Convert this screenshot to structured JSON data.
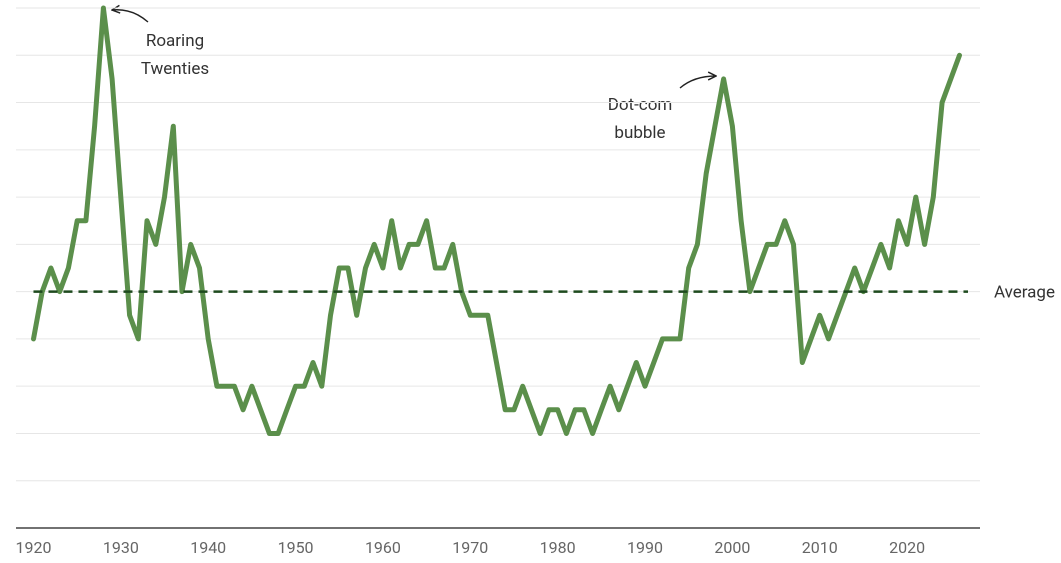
{
  "chart_data": {
    "type": "line",
    "x": [
      1920,
      1921,
      1922,
      1923,
      1924,
      1925,
      1926,
      1927,
      1928,
      1929,
      1930,
      1931,
      1932,
      1933,
      1934,
      1935,
      1936,
      1937,
      1938,
      1939,
      1940,
      1941,
      1942,
      1943,
      1944,
      1945,
      1946,
      1947,
      1948,
      1949,
      1950,
      1951,
      1952,
      1953,
      1954,
      1955,
      1956,
      1957,
      1958,
      1959,
      1960,
      1961,
      1962,
      1963,
      1964,
      1965,
      1966,
      1967,
      1968,
      1969,
      1970,
      1971,
      1972,
      1973,
      1974,
      1975,
      1976,
      1977,
      1978,
      1979,
      1980,
      1981,
      1982,
      1983,
      1984,
      1985,
      1986,
      1987,
      1988,
      1989,
      1990,
      1991,
      1992,
      1993,
      1994,
      1995,
      1996,
      1997,
      1998,
      1999,
      2000,
      2001,
      2002,
      2003,
      2004,
      2005,
      2006,
      2007,
      2008,
      2009,
      2010,
      2011,
      2012,
      2013,
      2014,
      2015,
      2016,
      2017,
      2018,
      2019,
      2020,
      2021,
      2022,
      2023,
      2024,
      2025,
      2026
    ],
    "values": [
      4,
      5,
      5.5,
      5,
      5.5,
      6.5,
      6.5,
      8.5,
      11,
      9.5,
      7,
      4.5,
      4,
      6.5,
      6,
      7,
      8.5,
      5,
      6,
      5.5,
      4,
      3,
      3,
      3,
      2.5,
      3,
      2.5,
      2,
      2,
      2.5,
      3,
      3,
      3.5,
      3,
      4.5,
      5.5,
      5.5,
      4.5,
      5.5,
      6,
      5.5,
      6.5,
      5.5,
      6,
      6,
      6.5,
      5.5,
      5.5,
      6,
      5,
      4.5,
      4.5,
      4.5,
      3.5,
      2.5,
      2.5,
      3,
      2.5,
      2,
      2.5,
      2.5,
      2,
      2.5,
      2.5,
      2,
      2.5,
      3,
      2.5,
      3,
      3.5,
      3,
      3.5,
      4,
      4,
      4,
      5.5,
      6,
      7.5,
      8.5,
      9.5,
      8.5,
      6.5,
      5,
      5.5,
      6,
      6,
      6.5,
      6,
      3.5,
      4,
      4.5,
      4,
      4.5,
      5,
      5.5,
      5,
      5.5,
      6,
      5.5,
      6.5,
      6,
      7,
      6,
      7,
      9,
      9.5,
      10
    ],
    "color": "#5b8f4b",
    "average": 5,
    "average_label": "Average",
    "average_color": "#1e4a1e",
    "annotations": [
      {
        "lines": [
          "Roaring",
          "Twenties"
        ]
      },
      {
        "lines": [
          "Dot-com",
          "bubble"
        ]
      }
    ],
    "xlim": [
      1918,
      2028
    ],
    "xticks": [
      1920,
      1930,
      1940,
      1950,
      1960,
      1970,
      1980,
      1990,
      2000,
      2010,
      2020
    ],
    "ylim": [
      0,
      11
    ],
    "yticks": [
      0,
      1,
      2,
      3,
      4,
      5,
      6,
      7,
      8,
      9,
      10,
      11
    ],
    "grid": true
  }
}
